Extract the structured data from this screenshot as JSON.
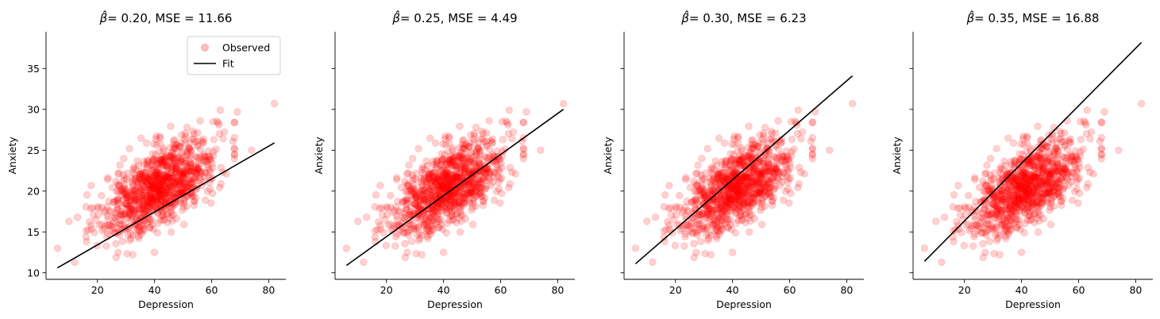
{
  "figure": {
    "background": "#ffffff"
  },
  "chart_data": [
    {
      "type": "scatter",
      "beta_label": "= 0.20, MSE = 11.66",
      "xlabel": "Depression",
      "ylabel": "Anxiety",
      "xlim": [
        2,
        86
      ],
      "ylim": [
        9.2,
        39.5
      ],
      "xticks": [
        20,
        40,
        60,
        80
      ],
      "yticks": [
        10,
        15,
        20,
        25,
        30,
        35
      ],
      "show_ytick_labels": true,
      "show_ylabel": true,
      "legend": {
        "placement": "top-right",
        "entries": [
          {
            "label": "Observed",
            "kind": "marker"
          },
          {
            "label": "Fit",
            "kind": "line"
          }
        ]
      },
      "series": [
        {
          "name": "Observed",
          "color": "#ff0000",
          "alpha": 0.18
        },
        {
          "name": "Fit",
          "color": "#000000"
        }
      ],
      "fit": {
        "x": [
          6,
          82
        ],
        "y": [
          10.6,
          25.9
        ]
      }
    },
    {
      "type": "scatter",
      "beta_label": "= 0.25, MSE = 4.49",
      "xlabel": "Depression",
      "ylabel": "Anxiety",
      "xlim": [
        2,
        86
      ],
      "ylim": [
        9.2,
        39.5
      ],
      "xticks": [
        20,
        40,
        60,
        80
      ],
      "yticks": [
        10,
        15,
        20,
        25,
        30,
        35
      ],
      "show_ytick_labels": false,
      "show_ylabel": true,
      "legend": null,
      "series": [
        {
          "name": "Observed",
          "color": "#ff0000",
          "alpha": 0.18
        },
        {
          "name": "Fit",
          "color": "#000000"
        }
      ],
      "fit": {
        "x": [
          6,
          82
        ],
        "y": [
          10.9,
          30.0
        ]
      }
    },
    {
      "type": "scatter",
      "beta_label": "= 0.30, MSE = 6.23",
      "xlabel": "Depression",
      "ylabel": "Anxiety",
      "xlim": [
        2,
        86
      ],
      "ylim": [
        9.2,
        39.5
      ],
      "xticks": [
        20,
        40,
        60,
        80
      ],
      "yticks": [
        10,
        15,
        20,
        25,
        30,
        35
      ],
      "show_ytick_labels": false,
      "show_ylabel": true,
      "legend": null,
      "series": [
        {
          "name": "Observed",
          "color": "#ff0000",
          "alpha": 0.18
        },
        {
          "name": "Fit",
          "color": "#000000"
        }
      ],
      "fit": {
        "x": [
          6,
          82
        ],
        "y": [
          11.1,
          34.1
        ]
      }
    },
    {
      "type": "scatter",
      "beta_label": "= 0.35, MSE = 16.88",
      "xlabel": "Depression",
      "ylabel": "Anxiety",
      "xlim": [
        2,
        86
      ],
      "ylim": [
        9.2,
        39.5
      ],
      "xticks": [
        20,
        40,
        60,
        80
      ],
      "yticks": [
        10,
        15,
        20,
        25,
        30,
        35
      ],
      "show_ytick_labels": false,
      "show_ylabel": true,
      "legend": null,
      "series": [
        {
          "name": "Observed",
          "color": "#ff0000",
          "alpha": 0.18
        },
        {
          "name": "Fit",
          "color": "#000000"
        }
      ],
      "fit": {
        "x": [
          6,
          82
        ],
        "y": [
          11.4,
          38.2
        ]
      }
    }
  ],
  "observed": {
    "n_shown": 1000,
    "x_mean": 42,
    "x_sd": 10,
    "y_mean": 20.6,
    "y_sd": 3.0,
    "correlation": 0.62,
    "outliers": [
      {
        "x": 82,
        "y": 30.7
      },
      {
        "x": 6,
        "y": 13.0
      },
      {
        "x": 12,
        "y": 11.3
      },
      {
        "x": 10,
        "y": 16.3
      },
      {
        "x": 13,
        "y": 16.8
      },
      {
        "x": 74,
        "y": 25.0
      },
      {
        "x": 69,
        "y": 29.7
      },
      {
        "x": 63,
        "y": 29.9
      }
    ]
  }
}
